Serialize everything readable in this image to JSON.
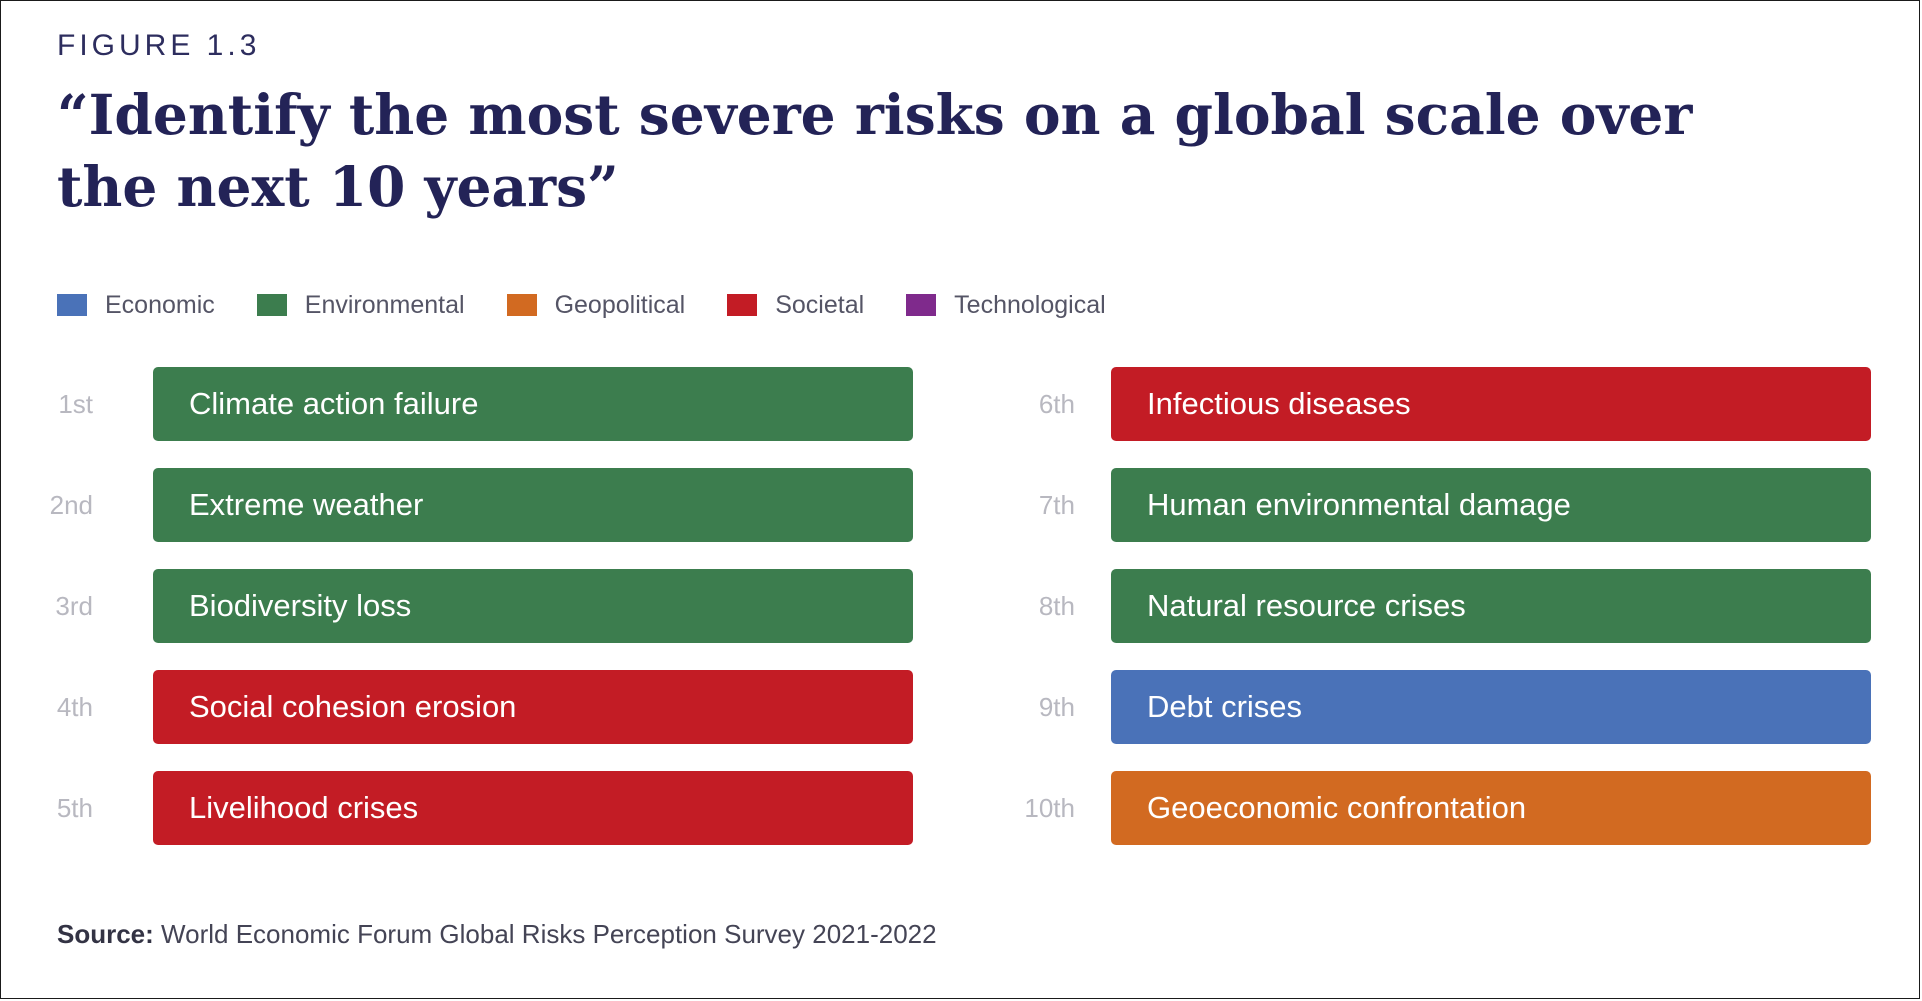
{
  "figure_label": "FIGURE 1.3",
  "colors": {
    "Economic": "#4a72b8",
    "Environmental": "#3c7d4e",
    "Geopolitical": "#d26a21",
    "Societal": "#c31c25",
    "Technological": "#7f2a8c"
  },
  "chart_data": {
    "type": "table",
    "title": "“Identify the most severe risks on a global scale over the next 10 years”",
    "legend": [
      "Economic",
      "Environmental",
      "Geopolitical",
      "Societal",
      "Technological"
    ],
    "legend_position": "top-left",
    "items": [
      {
        "rank": "1st",
        "label": "Climate action failure",
        "category": "Environmental"
      },
      {
        "rank": "2nd",
        "label": "Extreme weather",
        "category": "Environmental"
      },
      {
        "rank": "3rd",
        "label": "Biodiversity loss",
        "category": "Environmental"
      },
      {
        "rank": "4th",
        "label": "Social cohesion erosion",
        "category": "Societal"
      },
      {
        "rank": "5th",
        "label": "Livelihood crises",
        "category": "Societal"
      },
      {
        "rank": "6th",
        "label": "Infectious diseases",
        "category": "Societal"
      },
      {
        "rank": "7th",
        "label": "Human environmental damage",
        "category": "Environmental"
      },
      {
        "rank": "8th",
        "label": "Natural resource crises",
        "category": "Environmental"
      },
      {
        "rank": "9th",
        "label": "Debt crises",
        "category": "Economic"
      },
      {
        "rank": "10th",
        "label": "Geoeconomic confrontation",
        "category": "Geopolitical"
      }
    ]
  },
  "source": {
    "label": "Source:",
    "text": "World Economic Forum Global Risks Perception Survey 2021-2022"
  }
}
